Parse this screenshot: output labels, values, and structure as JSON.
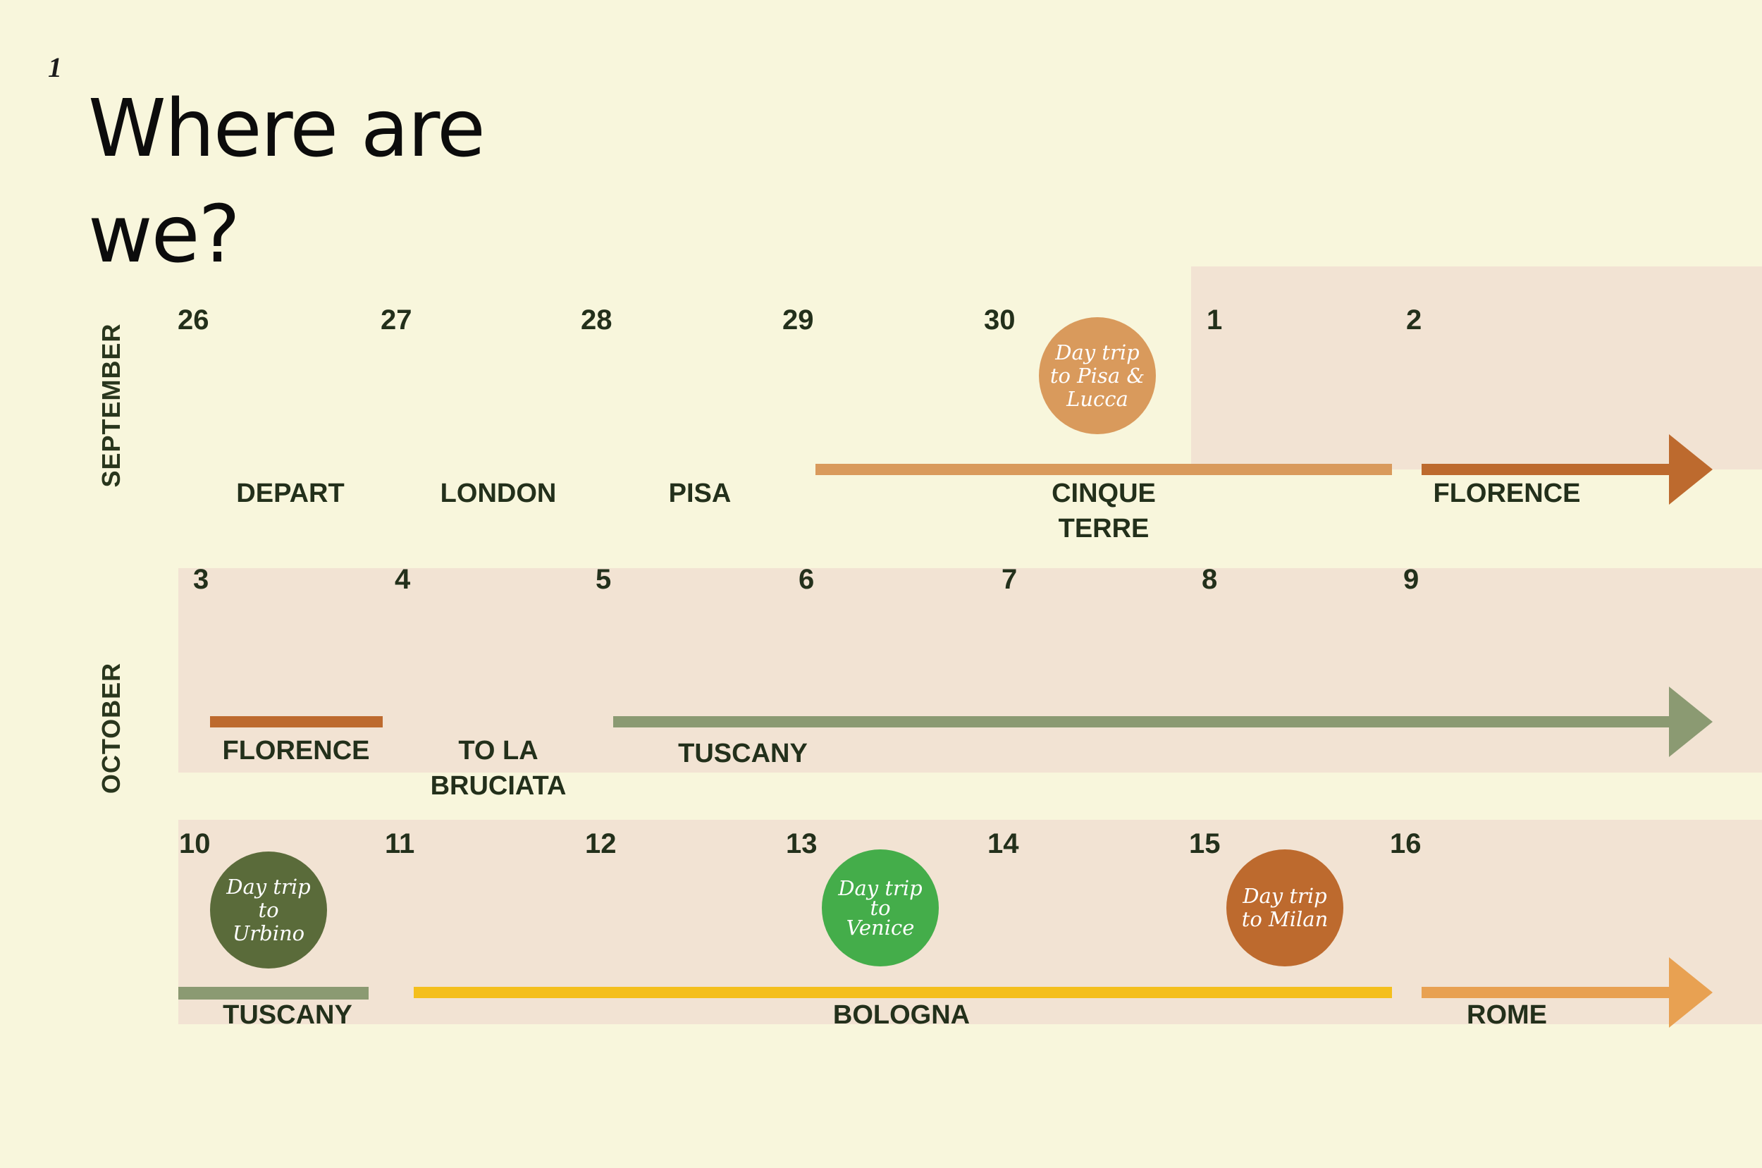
{
  "page_number": "1",
  "title_line1": "Where are",
  "title_line2": "we?",
  "colors": {
    "background": "#f8f6dc",
    "band": "#f2e3d3",
    "light_orange": "#d99a5c",
    "rust": "#bd6a2e",
    "sage": "#8b9a72",
    "yellow": "#f4bf1c",
    "dark_olive": "#5a6b3a",
    "green": "#44ad4a",
    "peach": "#e8a152"
  },
  "rows": [
    {
      "month": "SEPTEMBER",
      "days": [
        "26",
        "27",
        "28",
        "29",
        "30",
        "1",
        "2"
      ],
      "labels": [
        "DEPART",
        "LONDON",
        "PISA",
        "CINQUE\nTERRE",
        "FLORENCE"
      ],
      "day_trips": [
        "Day trip to Pisa & Lucca"
      ]
    },
    {
      "month": "OCTOBER",
      "days": [
        "3",
        "4",
        "5",
        "6",
        "7",
        "8",
        "9"
      ],
      "labels": [
        "FLORENCE",
        "TO LA\nBRUCIATA",
        "TUSCANY"
      ],
      "day_trips": []
    },
    {
      "month": "",
      "days": [
        "10",
        "11",
        "12",
        "13",
        "14",
        "15",
        "16"
      ],
      "labels": [
        "TUSCANY",
        "BOLOGNA",
        "ROME"
      ],
      "day_trips": [
        "Day trip to Urbino",
        "Day trip to Venice",
        "Day trip to Milan"
      ]
    }
  ],
  "trip_lines": {
    "pisa_lucca": [
      "Day trip",
      "to Pisa &",
      "Lucca"
    ],
    "urbino": [
      "Day trip",
      "to Urbino"
    ],
    "venice": [
      "Day trip",
      "to",
      "Venice"
    ],
    "milan": [
      "Day trip",
      "to Milan"
    ]
  }
}
